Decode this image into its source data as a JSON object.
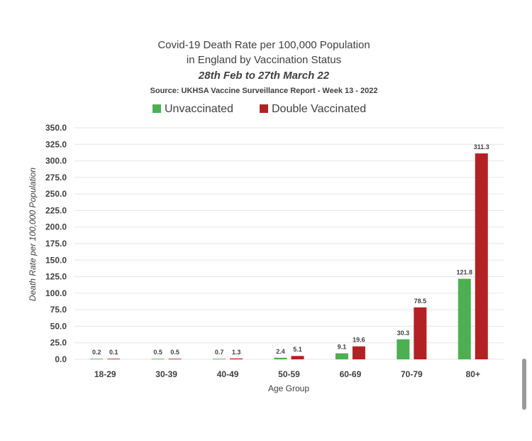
{
  "chart_data": {
    "type": "bar",
    "title_line1": "Covid-19 Death Rate per 100,000 Population",
    "title_line2": "in England by Vaccination Status",
    "subtitle": "28th Feb to 27th March 22",
    "source": "Source: UKHSA Vaccine Surveillance Report - Week 13 - 2022",
    "xlabel": "Age Group",
    "ylabel": "Death Rate per 100,000 Population",
    "ylim": [
      0,
      350
    ],
    "yticks": [
      0,
      25,
      50,
      75,
      100,
      125,
      150,
      175,
      200,
      225,
      250,
      275,
      300,
      325,
      350
    ],
    "ytick_labels": [
      "0.0",
      "25.0",
      "50.0",
      "75.0",
      "100.0",
      "125.0",
      "150.0",
      "175.0",
      "200.0",
      "225.0",
      "250.0",
      "275.0",
      "300.0",
      "325.0",
      "350.0"
    ],
    "grid": true,
    "legend_position": "top",
    "categories": [
      "18-29",
      "30-39",
      "40-49",
      "50-59",
      "60-69",
      "70-79",
      "80+"
    ],
    "series": [
      {
        "name": "Unvaccinated",
        "color": "#4caf50",
        "values": [
          0.2,
          0.5,
          0.7,
          2.4,
          9.1,
          30.3,
          121.8
        ],
        "labels": [
          "0.2",
          "0.5",
          "0.7",
          "2.4",
          "9.1",
          "30.3",
          "121.8"
        ]
      },
      {
        "name": "Double Vaccinated",
        "color": "#b22222",
        "values": [
          0.1,
          0.5,
          1.3,
          5.1,
          19.6,
          78.5,
          311.3
        ],
        "labels": [
          "0.1",
          "0.5",
          "1.3",
          "5.1",
          "19.6",
          "78.5",
          "311.3"
        ]
      }
    ]
  }
}
